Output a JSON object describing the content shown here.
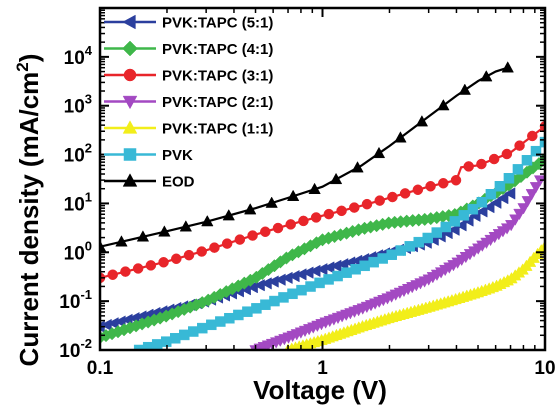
{
  "chart_data": {
    "type": "line",
    "xlabel": "Voltage (V)",
    "ylabel_main": "Current density (mA/cm",
    "ylabel_sup": "2",
    "ylabel_close": ")",
    "xscale": "log",
    "yscale": "log",
    "xlim": [
      0.1,
      10
    ],
    "ylim": [
      0.01,
      100000
    ],
    "grid": false,
    "legend_position": "top-left",
    "x_ticks": [
      {
        "value": 0.1,
        "label": "0.1"
      },
      {
        "value": 1,
        "label": "1"
      },
      {
        "value": 10,
        "label": "10"
      }
    ],
    "y_ticks": [
      {
        "value": 0.01,
        "base": "10",
        "exp": "-2"
      },
      {
        "value": 0.1,
        "base": "10",
        "exp": "-1"
      },
      {
        "value": 1,
        "base": "10",
        "exp": "0"
      },
      {
        "value": 10,
        "base": "10",
        "exp": "1"
      },
      {
        "value": 100,
        "base": "10",
        "exp": "2"
      },
      {
        "value": 1000,
        "base": "10",
        "exp": "3"
      },
      {
        "value": 10000,
        "base": "10",
        "exp": "4"
      }
    ],
    "series": [
      {
        "name": "PVK:TAPC (5:1)",
        "color": "#2b3f9e",
        "marker": "triangle-left",
        "x": [
          0.1,
          0.2,
          0.3,
          0.5,
          0.7,
          1.0,
          1.5,
          2.0,
          3.0,
          4.0,
          5.0,
          6.0,
          7.0
        ],
        "y": [
          0.03,
          0.065,
          0.1,
          0.2,
          0.3,
          0.45,
          0.7,
          1.0,
          1.6,
          3.0,
          6.0,
          10,
          16
        ]
      },
      {
        "name": "PVK:TAPC (4:1)",
        "color": "#3fb74a",
        "marker": "diamond",
        "x": [
          0.1,
          0.2,
          0.3,
          0.5,
          0.7,
          1.0,
          1.5,
          2.0,
          3.0,
          4.0,
          5.0,
          7.0,
          10.0
        ],
        "y": [
          0.018,
          0.05,
          0.1,
          0.3,
          0.8,
          1.8,
          3.0,
          4.0,
          4.8,
          6.0,
          10,
          25,
          80
        ]
      },
      {
        "name": "PVK:TAPC (3:1)",
        "color": "#e8252a",
        "marker": "circle",
        "x": [
          0.1,
          0.2,
          0.3,
          0.5,
          0.7,
          1.0,
          1.5,
          2.0,
          3.0,
          4.0,
          4.2,
          5.0,
          7.0,
          10.0
        ],
        "y": [
          0.3,
          0.65,
          1.1,
          2.3,
          3.6,
          5.6,
          9.0,
          13,
          22,
          30,
          55,
          60,
          110,
          380
        ]
      },
      {
        "name": "PVK:TAPC (2:1)",
        "color": "#a349c2",
        "marker": "triangle-down",
        "x": [
          0.5,
          0.7,
          1.0,
          1.5,
          2.0,
          3.0,
          4.0,
          5.0,
          7.0,
          8.0,
          9.0,
          9.5
        ],
        "y": [
          0.01,
          0.018,
          0.035,
          0.07,
          0.12,
          0.28,
          0.6,
          1.2,
          3.5,
          8.0,
          20,
          30
        ]
      },
      {
        "name": "PVK:TAPC (1:1)",
        "color": "#f2ee1a",
        "marker": "triangle-up",
        "x": [
          0.7,
          1.0,
          1.5,
          2.0,
          3.0,
          4.0,
          5.0,
          6.0,
          7.0,
          8.0,
          9.0,
          10.0
        ],
        "y": [
          0.01,
          0.016,
          0.03,
          0.045,
          0.075,
          0.11,
          0.15,
          0.2,
          0.28,
          0.45,
          0.8,
          1.3
        ]
      },
      {
        "name": "PVK",
        "color": "#38b9d6",
        "marker": "square",
        "x": [
          0.15,
          0.2,
          0.3,
          0.5,
          0.7,
          1.0,
          1.5,
          2.0,
          3.0,
          4.0,
          5.0,
          7.0,
          10.0
        ],
        "y": [
          0.01,
          0.015,
          0.03,
          0.07,
          0.13,
          0.25,
          0.5,
          0.85,
          2.0,
          4.5,
          9.0,
          35,
          180
        ]
      },
      {
        "name": "EOD",
        "color": "#000000",
        "marker": "triangle-up",
        "x": [
          0.1,
          0.2,
          0.3,
          0.5,
          0.7,
          1.0,
          1.5,
          2.0,
          3.0,
          4.0,
          5.0,
          6.0,
          6.8
        ],
        "y": [
          1.3,
          2.7,
          4.2,
          8.0,
          13,
          22,
          60,
          150,
          600,
          1600,
          3200,
          5000,
          6000
        ]
      }
    ]
  }
}
